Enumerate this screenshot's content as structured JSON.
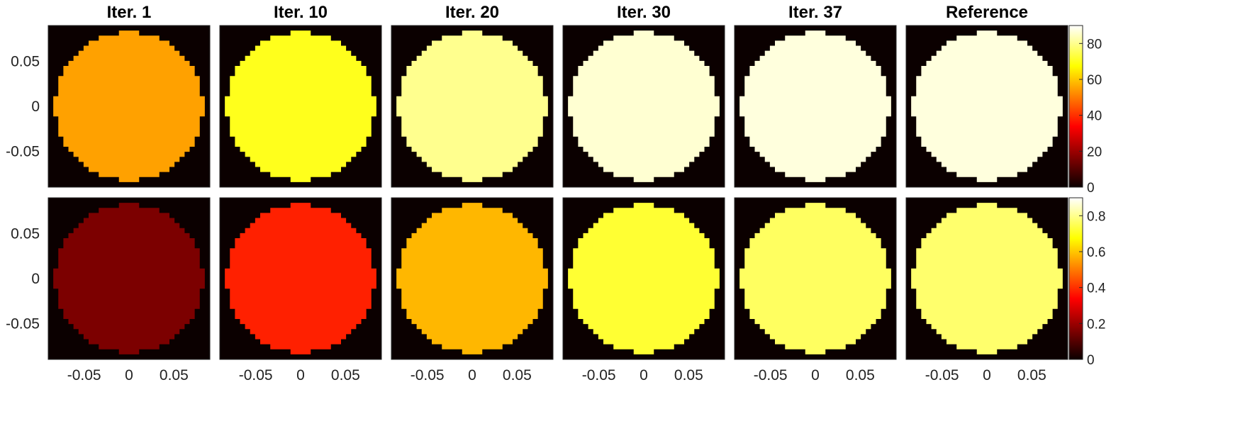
{
  "chart_data": {
    "type": "heatmap",
    "colormap": "hot",
    "columns": [
      "Iter. 1",
      "Iter. 10",
      "Iter. 20",
      "Iter. 30",
      "Iter. 37",
      "Reference"
    ],
    "x_ticks": [
      "-0.05",
      "0",
      "0.05"
    ],
    "y_ticks": [
      "0.05",
      "0",
      "-0.05"
    ],
    "x_range": [
      -0.09,
      0.09
    ],
    "y_range": [
      -0.09,
      0.09
    ],
    "rows": [
      {
        "colorbar_range": [
          0,
          90
        ],
        "colorbar_ticks": [
          "80",
          "60",
          "40",
          "20",
          "0"
        ],
        "disk_values": [
          55,
          70,
          80,
          86,
          87,
          87
        ]
      },
      {
        "colorbar_range": [
          0,
          0.9
        ],
        "colorbar_ticks": [
          "0.8",
          "0.6",
          "0.4",
          "0.2",
          "0"
        ],
        "disk_values": [
          0.15,
          0.38,
          0.58,
          0.72,
          0.76,
          0.77
        ]
      }
    ]
  }
}
